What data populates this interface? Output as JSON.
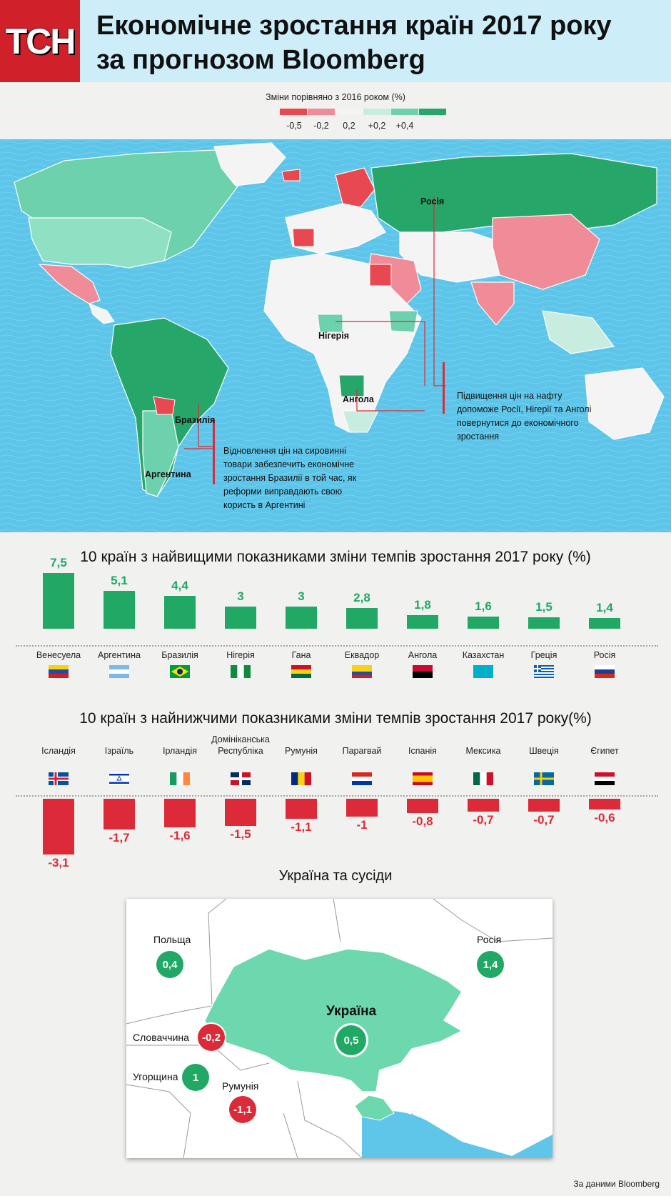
{
  "header": {
    "logo": "ТСН",
    "title_line1": "Економічне зростання країн 2017 року",
    "title_line2": "за прогнозом Bloomberg"
  },
  "legend": {
    "title": "Зміни порівняно з 2016 роком (%)",
    "labels": [
      "-0,5",
      "-0,2",
      "0,2",
      "+0,2",
      "+0,4"
    ],
    "colors": [
      "#e8484f",
      "#f08c97",
      "#f4f4f4",
      "#c8ece0",
      "#6dd1ad",
      "#27a66a"
    ]
  },
  "map": {
    "labels": {
      "russia": "Росія",
      "nigeria": "Нігерія",
      "angola": "Ангола",
      "brazil": "Бразилія",
      "argentina": "Аргентина"
    },
    "callout_oil": [
      "Підвищення цін на нафту",
      "допоможе Росії, Нігерії та Анголі",
      "повернутися до економічного",
      "зростання"
    ],
    "callout_raw": [
      "Відновлення цін на сировинні",
      "товари забезпечить економічне",
      "зростання Бразилії в той час, як",
      "реформи виправдають свою",
      "користь в Аргентині"
    ]
  },
  "top_title": "10 країн з найвищими показниками зміни темпів зростання 2017 року (%)",
  "bottom_title": "10 країн з найнижчими показниками зміни темпів зростання 2017 року(%)",
  "chart_data": [
    {
      "type": "bar",
      "title": "10 країн з найвищими показниками зміни темпів зростання 2017 року (%)",
      "categories": [
        "Венесуела",
        "Аргентина",
        "Бразилія",
        "Нігерія",
        "Гана",
        "Еквадор",
        "Ангола",
        "Казахстан",
        "Греція",
        "Росія"
      ],
      "value_labels": [
        "7,5",
        "5,1",
        "4,4",
        "3",
        "3",
        "2,8",
        "1,8",
        "1,6",
        "1,5",
        "1,4"
      ],
      "values": [
        7.5,
        5.1,
        4.4,
        3,
        3,
        2.8,
        1.8,
        1.6,
        1.5,
        1.4
      ],
      "color": "#20a864"
    },
    {
      "type": "bar",
      "title": "10 країн з найнижчими показниками зміни темпів зростання 2017 року(%)",
      "categories": [
        "Ісландія",
        "Ізраїль",
        "Ірландія",
        "Домініканська Республіка",
        "Румунія",
        "Парагвай",
        "Іспанія",
        "Мексика",
        "Швеція",
        "Єгипет"
      ],
      "value_labels": [
        "-3,1",
        "-1,7",
        "-1,6",
        "-1,5",
        "-1,1",
        "-1",
        "-0,8",
        "-0,7",
        "-0,7",
        "-0,6"
      ],
      "values": [
        -3.1,
        -1.7,
        -1.6,
        -1.5,
        -1.1,
        -1,
        -0.8,
        -0.7,
        -0.7,
        -0.6
      ],
      "color": "#dc2a38"
    }
  ],
  "bottom_name_lines": [
    [
      "Ісландія"
    ],
    [
      "Ізраїль"
    ],
    [
      "Ірландія"
    ],
    [
      "Домініканська",
      "Республіка"
    ],
    [
      "Румунія"
    ],
    [
      "Парагвай"
    ],
    [
      "Іспанія"
    ],
    [
      "Мексика"
    ],
    [
      "Швеція"
    ],
    [
      "Єгипет"
    ]
  ],
  "flags_top": [
    "venezuela-flag",
    "argentina-flag",
    "brazil-flag",
    "nigeria-flag",
    "ghana-flag",
    "ecuador-flag",
    "angola-flag",
    "kazakhstan-flag",
    "greece-flag",
    "russia-flag"
  ],
  "flags_bottom": [
    "iceland-flag",
    "israel-flag",
    "ireland-flag",
    "dominican-republic-flag",
    "romania-flag",
    "paraguay-flag",
    "spain-flag",
    "mexico-flag",
    "sweden-flag",
    "egypt-flag"
  ],
  "ukraine": {
    "title": "Україна та сусіди",
    "countries": [
      {
        "name": "Польща",
        "value": "0,4",
        "status": "positive"
      },
      {
        "name": "Росія",
        "value": "1,4",
        "status": "positive"
      },
      {
        "name": "Україна",
        "value": "0,5",
        "status": "positive"
      },
      {
        "name": "Словаччина",
        "value": "-0,2",
        "status": "negative"
      },
      {
        "name": "Угорщина",
        "value": "1",
        "status": "positive"
      },
      {
        "name": "Румунія",
        "value": "-1,1",
        "status": "negative"
      }
    ],
    "colors": {
      "positive": "#20a864",
      "negative": "#dc2a38",
      "ukraine_fill": "#6dd8ad",
      "sea": "#5fc6ea"
    }
  },
  "source": "За даними Bloomberg"
}
